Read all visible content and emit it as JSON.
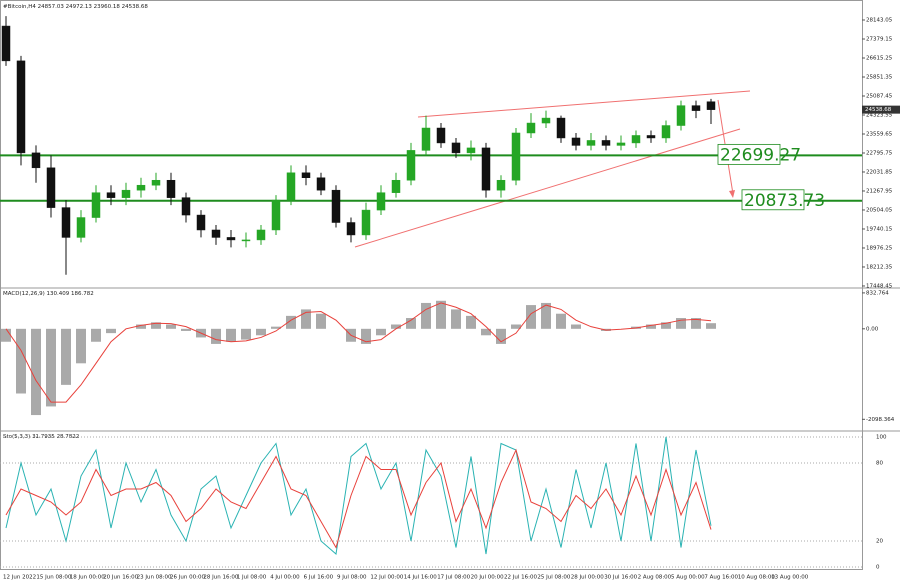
{
  "chart_data": {
    "type": "candlestick",
    "title": "#Bitcoin,H4",
    "candles": {
      "open": [
        27900,
        26500,
        22800,
        22200,
        20600,
        19400,
        20200,
        21200,
        21000,
        21300,
        21500,
        21700,
        21000,
        20300,
        19700,
        19400,
        19300,
        19300,
        19700,
        20900,
        22000,
        21800,
        21300,
        20000,
        19500,
        20500,
        21200,
        21700,
        22900,
        23800,
        23200,
        22800,
        23000,
        21300,
        21700,
        23600,
        24000,
        24200,
        23400,
        23100,
        23300,
        23100,
        23200,
        23500,
        23400,
        23900,
        24700,
        24857.03
      ],
      "high": [
        28300,
        26700,
        23100,
        22700,
        20900,
        20500,
        21500,
        21500,
        21600,
        21800,
        22000,
        22000,
        21200,
        20500,
        19900,
        19700,
        19600,
        19900,
        21100,
        22300,
        22300,
        22000,
        21500,
        20200,
        20800,
        21500,
        22000,
        23200,
        24300,
        24000,
        23400,
        23300,
        23200,
        21900,
        23800,
        24400,
        24500,
        24300,
        23600,
        23600,
        23500,
        23500,
        23700,
        23700,
        24100,
        24900,
        24900,
        24972.13
      ],
      "low": [
        26300,
        22300,
        21600,
        20200,
        17900,
        19200,
        20000,
        20700,
        20700,
        21000,
        21300,
        20700,
        20000,
        19400,
        19100,
        19000,
        19000,
        19100,
        19500,
        20700,
        21500,
        21100,
        19800,
        19200,
        19300,
        20300,
        21000,
        21500,
        22700,
        23000,
        22600,
        22500,
        21000,
        21000,
        21500,
        23400,
        23800,
        23200,
        22900,
        22900,
        22900,
        22900,
        23000,
        23200,
        23200,
        23700,
        24200,
        23960.18
      ],
      "close": [
        26500,
        22800,
        22200,
        20600,
        19400,
        20200,
        21200,
        21000,
        21300,
        21500,
        21700,
        21000,
        20300,
        19700,
        19400,
        19300,
        19300,
        19700,
        20900,
        22000,
        21800,
        21300,
        20000,
        19500,
        20500,
        21200,
        21700,
        22900,
        23800,
        23200,
        22800,
        23000,
        21300,
        21700,
        23600,
        24000,
        24200,
        23400,
        23100,
        23300,
        23100,
        23200,
        23500,
        23400,
        23900,
        24700,
        24500,
        24538.68
      ]
    },
    "colors": {
      "up": "#25a625",
      "down": "#111111"
    },
    "ylim": [
      17407,
      28867
    ],
    "yticks": [
      28143.05,
      27379.15,
      26615.25,
      25851.35,
      25087.45,
      24323.55,
      23559.65,
      22795.75,
      22031.85,
      21267.95,
      20504.05,
      19740.15,
      18976.25,
      18212.35,
      17448.45
    ],
    "levels": [
      {
        "value": 22699.27,
        "color": "#1e8c1e"
      },
      {
        "value": 20873.73,
        "color": "#1e8c1e"
      }
    ],
    "x_labels": [
      "12 Jun 2022",
      "15 Jun 08:00",
      "18 Jun 00:00",
      "20 Jun 16:00",
      "23 Jun 08:00",
      "26 Jun 00:00",
      "28 Jun 16:00",
      "1 Jul 08:00",
      "4 Jul 00:00",
      "6 Jul 16:00",
      "9 Jul 08:00",
      "12 Jul 00:00",
      "14 Jul 16:00",
      "17 Jul 08:00",
      "20 Jul 00:00",
      "22 Jul 16:00",
      "25 Jul 08:00",
      "28 Jul 00:00",
      "30 Jul 16:00",
      "2 Aug 08:00",
      "5 Aug 00:00",
      "7 Aug 16:00",
      "10 Aug 08:00",
      "13 Aug 00:00"
    ],
    "macd": {
      "label": "MACD(12,26,9)",
      "hist_color": "#a9a9a9",
      "signal_color": "#e8413b",
      "ylim": [
        -2300,
        900
      ],
      "yticks": [
        832.764,
        {
          "value": 0,
          "label": "0.00"
        },
        -2098.364
      ],
      "histogram": [
        -300,
        -1500,
        -2000,
        -1800,
        -1300,
        -800,
        -300,
        -100,
        0,
        100,
        150,
        100,
        -50,
        -200,
        -350,
        -300,
        -250,
        -150,
        50,
        300,
        450,
        350,
        0,
        -300,
        -350,
        -150,
        100,
        250,
        600,
        650,
        450,
        300,
        -150,
        -350,
        100,
        550,
        600,
        350,
        100,
        0,
        -50,
        0,
        50,
        100,
        150,
        250,
        250,
        130.409
      ],
      "signal": [
        0,
        -500,
        -1200,
        -1700,
        -1700,
        -1300,
        -800,
        -300,
        0,
        80,
        130,
        120,
        50,
        -100,
        -250,
        -300,
        -280,
        -200,
        -50,
        200,
        380,
        400,
        200,
        -150,
        -300,
        -250,
        0,
        200,
        450,
        600,
        500,
        350,
        50,
        -300,
        -100,
        350,
        550,
        450,
        200,
        50,
        -30,
        -10,
        20,
        80,
        130,
        200,
        220,
        186.782
      ]
    },
    "stoch": {
      "label": "Sto(5,3,3)",
      "main_color": "#2ab3b3",
      "signal_color": "#e8413b",
      "ylim": [
        0,
        100
      ],
      "yticks": [
        0,
        20,
        80,
        100
      ],
      "main": [
        30,
        80,
        40,
        60,
        20,
        70,
        90,
        30,
        80,
        50,
        75,
        40,
        20,
        60,
        70,
        30,
        55,
        80,
        95,
        40,
        60,
        20,
        10,
        85,
        95,
        60,
        80,
        20,
        90,
        70,
        15,
        85,
        10,
        95,
        90,
        20,
        60,
        15,
        75,
        30,
        80,
        20,
        95,
        20,
        100,
        15,
        90,
        31.7935
      ],
      "signal": [
        40,
        60,
        55,
        50,
        40,
        50,
        75,
        55,
        60,
        60,
        65,
        55,
        35,
        45,
        60,
        50,
        45,
        65,
        85,
        60,
        55,
        35,
        15,
        55,
        85,
        75,
        75,
        40,
        65,
        80,
        35,
        60,
        30,
        65,
        90,
        50,
        45,
        35,
        55,
        45,
        60,
        40,
        70,
        40,
        75,
        40,
        65,
        28.7822
      ]
    }
  }
}
